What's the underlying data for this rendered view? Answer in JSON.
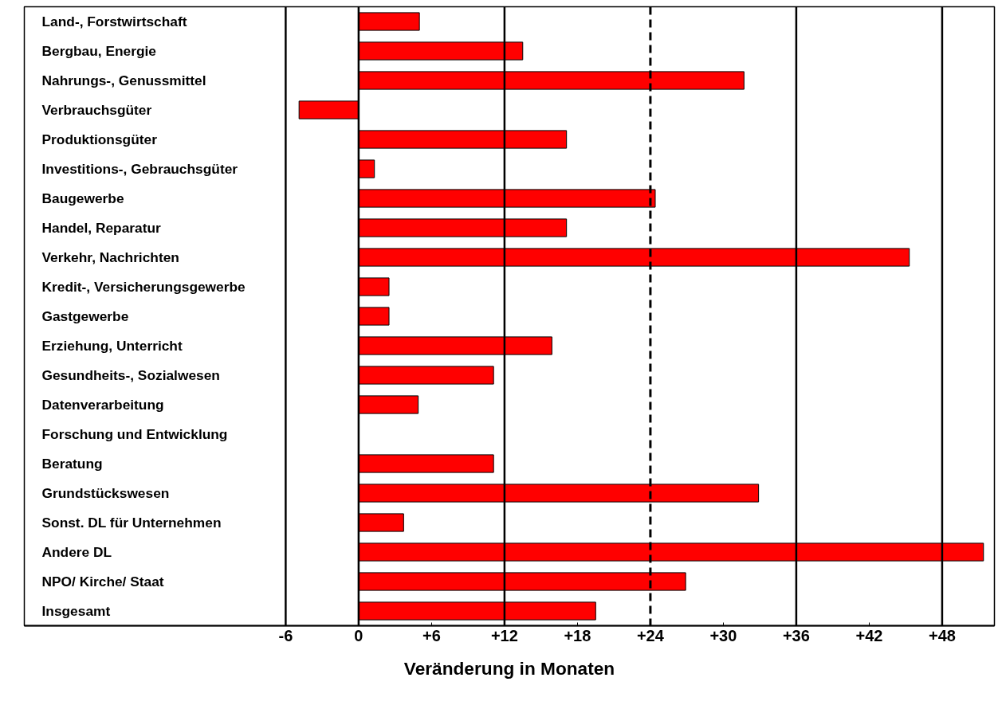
{
  "chart_data": {
    "type": "bar",
    "orientation": "horizontal",
    "xlabel": "Veränderung in Monaten",
    "categories": [
      "Land-, Forstwirtschaft",
      "Bergbau, Energie",
      "Nahrungs-, Genussmittel",
      "Verbrauchsgüter",
      "Produktionsgüter",
      "Investitions-, Gebrauchsgüter",
      "Baugewerbe",
      "Handel, Reparatur",
      "Verkehr, Nachrichten",
      "Kredit-, Versicherungsgewerbe",
      "Gastgewerbe",
      "Erziehung, Unterricht",
      "Gesundheits-, Sozialwesen",
      "Datenverarbeitung",
      "Forschung und Entwicklung",
      "Beratung",
      "Grundstückswesen",
      "Sonst. DL für Unternehmen",
      "Andere DL",
      "NPO/ Kirche/ Staat",
      "Insgesamt"
    ],
    "values": [
      5,
      13.5,
      31.7,
      -4.9,
      17.1,
      1.3,
      24.4,
      17.1,
      45.3,
      2.5,
      2.5,
      15.9,
      11.1,
      4.9,
      null,
      11.1,
      32.9,
      3.7,
      51.4,
      26.9,
      19.5
    ],
    "color": "#ff0000",
    "xlim": [
      -27.5,
      52.3
    ],
    "xticks": [
      -6,
      0,
      {
        "value": 6,
        "label": "+6"
      },
      {
        "value": 12,
        "label": "+12"
      },
      {
        "value": 18,
        "label": "+18"
      },
      {
        "value": 24,
        "label": "+24"
      },
      {
        "value": 30,
        "label": "+30"
      },
      {
        "value": 36,
        "label": "+36"
      },
      {
        "value": 42,
        "label": "+42"
      },
      {
        "value": 48,
        "label": "+48"
      }
    ],
    "ref_lines": [
      {
        "axis": "x",
        "value": -6,
        "color": "#000000",
        "line_style": "solid"
      },
      {
        "axis": "x",
        "value": 0,
        "color": "#000000",
        "line_style": "solid"
      },
      {
        "axis": "x",
        "value": 12,
        "color": "#000000",
        "line_style": "solid"
      },
      {
        "axis": "x",
        "value": 24,
        "color": "#000000",
        "line_style": "dashed"
      },
      {
        "axis": "x",
        "value": 36,
        "color": "#000000",
        "line_style": "solid"
      },
      {
        "axis": "x",
        "value": 48,
        "color": "#000000",
        "line_style": "solid"
      }
    ],
    "grid": false
  }
}
